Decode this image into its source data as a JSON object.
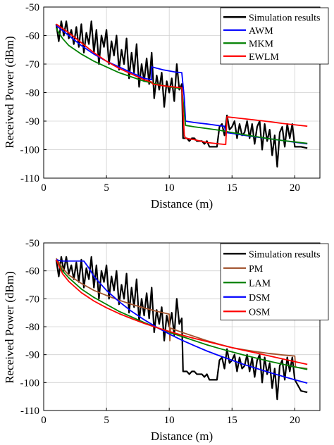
{
  "chart_data": [
    {
      "type": "line",
      "xlabel": "Distance (m)",
      "ylabel": "Received Power (dBm)",
      "xlim": [
        0,
        22
      ],
      "ylim": [
        -110,
        -50
      ],
      "xticks": [
        "0",
        "5",
        "10",
        "15",
        "20"
      ],
      "yticks": [
        "-50",
        "-60",
        "-70",
        "-80",
        "-90",
        "-100",
        "-110"
      ],
      "grid": true,
      "legend_position": "top-right",
      "series": [
        {
          "name": "Simulation results",
          "color": "#000000",
          "width": 2.2,
          "x": [
            1.0,
            1.2,
            1.4,
            1.6,
            1.8,
            2.0,
            2.2,
            2.4,
            2.6,
            2.8,
            3.0,
            3.2,
            3.4,
            3.6,
            3.8,
            4.0,
            4.2,
            4.4,
            4.6,
            4.8,
            5.0,
            5.2,
            5.4,
            5.6,
            5.8,
            6.0,
            6.2,
            6.4,
            6.6,
            6.8,
            7.0,
            7.2,
            7.4,
            7.6,
            7.8,
            8.0,
            8.2,
            8.4,
            8.6,
            8.8,
            9.0,
            9.2,
            9.4,
            9.6,
            9.8,
            10.0,
            10.2,
            10.4,
            10.6,
            10.8,
            11.0,
            11.1,
            11.2,
            11.4,
            11.6,
            11.8,
            12.0,
            12.2,
            12.4,
            12.6,
            12.8,
            13.0,
            13.2,
            13.4,
            13.6,
            13.8,
            14.0,
            14.2,
            14.4,
            14.6,
            14.8,
            15.0,
            15.2,
            15.4,
            15.6,
            15.8,
            16.0,
            16.2,
            16.4,
            16.6,
            16.8,
            17.0,
            17.2,
            17.4,
            17.6,
            17.8,
            18.0,
            18.2,
            18.4,
            18.6,
            18.8,
            19.0,
            19.2,
            19.4,
            19.6,
            19.8,
            20.0,
            20.5,
            21.0
          ],
          "y": [
            -56,
            -62,
            -55,
            -60,
            -55,
            -61,
            -58,
            -63,
            -57,
            -64,
            -56,
            -66,
            -59,
            -63,
            -55,
            -66,
            -58,
            -70,
            -60,
            -64,
            -58,
            -70,
            -62,
            -67,
            -60,
            -72,
            -65,
            -70,
            -61,
            -75,
            -66,
            -73,
            -63,
            -78,
            -70,
            -76,
            -68,
            -77,
            -66,
            -82,
            -74,
            -79,
            -73,
            -85,
            -76,
            -80,
            -75,
            -83,
            -70,
            -79,
            -77,
            -96,
            -96,
            -96,
            -97,
            -96,
            -96,
            -97,
            -97,
            -97,
            -98,
            -97,
            -99,
            -99,
            -99,
            -99,
            -92,
            -91,
            -95,
            -88,
            -93,
            -92,
            -90,
            -96,
            -91,
            -95,
            -94,
            -90,
            -96,
            -91,
            -98,
            -92,
            -90,
            -100,
            -91,
            -97,
            -93,
            -102,
            -95,
            -106,
            -94,
            -92,
            -99,
            -91,
            -96,
            -91,
            -99,
            -99,
            -99.5
          ]
        },
        {
          "name": "AWM",
          "color": "#0000ff",
          "width": 1.8,
          "x": [
            1.0,
            2,
            3,
            4,
            5,
            6,
            7,
            8,
            8.6,
            8.6,
            9.5,
            10.5,
            11.0,
            11.2,
            11.3,
            12,
            13,
            14,
            14.4,
            14.5,
            15,
            16,
            17,
            18,
            19,
            20,
            21
          ],
          "y": [
            -56.5,
            -60,
            -63.5,
            -66.5,
            -69,
            -71,
            -73,
            -75,
            -75.5,
            -71,
            -72,
            -72.8,
            -73,
            -82,
            -90,
            -90.5,
            -91,
            -91.6,
            -91.8,
            -94,
            -94.3,
            -95,
            -95.6,
            -96.2,
            -96.8,
            -97.4,
            -98
          ]
        },
        {
          "name": "MKM",
          "color": "#008000",
          "width": 1.8,
          "x": [
            1.0,
            1.5,
            2,
            3,
            4,
            5,
            6,
            7,
            8,
            9,
            10,
            11,
            11.3,
            12,
            13,
            14,
            15,
            16,
            17,
            18,
            19,
            20,
            21
          ],
          "y": [
            -57.5,
            -61,
            -63.5,
            -66.5,
            -69,
            -71,
            -73,
            -74.5,
            -76,
            -77,
            -78,
            -78.6,
            -91.5,
            -92,
            -92.6,
            -93.2,
            -94,
            -94.8,
            -95.5,
            -96.2,
            -96.8,
            -97.3,
            -97.8
          ]
        },
        {
          "name": "EWLM",
          "color": "#ff0000",
          "width": 1.8,
          "x": [
            1.0,
            2,
            3,
            4,
            5,
            6,
            7,
            8,
            8.6,
            8.7,
            9.5,
            10.5,
            11.0,
            11.2,
            11.3,
            12,
            13,
            14,
            14.5,
            14.6,
            15,
            16,
            17,
            18,
            19,
            20,
            21
          ],
          "y": [
            -56,
            -59,
            -62.5,
            -66,
            -69,
            -71.5,
            -73.5,
            -75.5,
            -76.3,
            -77,
            -77.6,
            -78.1,
            -78.3,
            -95,
            -96,
            -96.5,
            -97.5,
            -98,
            -98.2,
            -88.5,
            -88.7,
            -89.2,
            -89.7,
            -90.2,
            -90.8,
            -91.3,
            -91.8
          ]
        }
      ]
    },
    {
      "type": "line",
      "xlabel": "Distance (m)",
      "ylabel": "Received Power (dBm)",
      "xlim": [
        0,
        22
      ],
      "ylim": [
        -110,
        -50
      ],
      "xticks": [
        "0",
        "5",
        "10",
        "15",
        "20"
      ],
      "yticks": [
        "-50",
        "-60",
        "-70",
        "-80",
        "-90",
        "-100",
        "-110"
      ],
      "grid": true,
      "legend_position": "top-right",
      "series": [
        {
          "name": "Simulation results",
          "color": "#000000",
          "width": 2.2,
          "x": [
            1.0,
            1.2,
            1.4,
            1.6,
            1.8,
            2.0,
            2.2,
            2.4,
            2.6,
            2.8,
            3.0,
            3.2,
            3.4,
            3.6,
            3.8,
            4.0,
            4.2,
            4.4,
            4.6,
            4.8,
            5.0,
            5.2,
            5.4,
            5.6,
            5.8,
            6.0,
            6.2,
            6.4,
            6.6,
            6.8,
            7.0,
            7.2,
            7.4,
            7.6,
            7.8,
            8.0,
            8.2,
            8.4,
            8.6,
            8.8,
            9.0,
            9.2,
            9.4,
            9.6,
            9.8,
            10.0,
            10.2,
            10.4,
            10.6,
            10.8,
            11.0,
            11.1,
            11.2,
            11.4,
            11.6,
            11.8,
            12.0,
            12.2,
            12.4,
            12.6,
            12.8,
            13.0,
            13.2,
            13.4,
            13.6,
            13.8,
            14.0,
            14.2,
            14.4,
            14.6,
            14.8,
            15.0,
            15.2,
            15.4,
            15.6,
            15.8,
            16.0,
            16.2,
            16.4,
            16.6,
            16.8,
            17.0,
            17.2,
            17.4,
            17.6,
            17.8,
            18.0,
            18.2,
            18.4,
            18.6,
            18.8,
            19.0,
            19.2,
            19.4,
            19.6,
            19.8,
            20.0,
            20.5,
            21.0
          ],
          "y": [
            -56,
            -62,
            -55,
            -60,
            -55,
            -61,
            -58,
            -63,
            -57,
            -64,
            -56,
            -66,
            -59,
            -63,
            -55,
            -66,
            -58,
            -70,
            -60,
            -64,
            -58,
            -70,
            -62,
            -67,
            -60,
            -72,
            -65,
            -70,
            -61,
            -75,
            -66,
            -73,
            -63,
            -78,
            -70,
            -76,
            -68,
            -77,
            -66,
            -82,
            -74,
            -79,
            -73,
            -85,
            -76,
            -80,
            -75,
            -83,
            -70,
            -79,
            -77,
            -96,
            -96,
            -96,
            -97,
            -96,
            -96,
            -97,
            -97,
            -97,
            -98,
            -97,
            -99,
            -99,
            -99,
            -99,
            -92,
            -91,
            -95,
            -88,
            -93,
            -92,
            -90,
            -96,
            -91,
            -95,
            -94,
            -90,
            -96,
            -91,
            -98,
            -92,
            -90,
            -100,
            -91,
            -97,
            -93,
            -102,
            -95,
            -106,
            -94,
            -92,
            -99,
            -91,
            -96,
            -91,
            -99,
            -103,
            -103.5
          ]
        },
        {
          "name": "PM",
          "color": "#a0522d",
          "width": 1.8,
          "x": [
            1.0,
            1.5,
            2,
            3,
            4,
            5,
            6,
            7,
            8,
            9,
            10.0,
            10.05,
            10.1,
            11,
            12,
            13,
            14,
            15,
            16,
            17,
            18,
            19,
            20.0,
            20.05,
            20.1,
            21
          ],
          "y": [
            -55.5,
            -59,
            -61.5,
            -64.5,
            -67,
            -68.8,
            -70.5,
            -72,
            -73.3,
            -74.5,
            -75.5,
            -85,
            -80.5,
            -82,
            -83.5,
            -85,
            -86.3,
            -87.5,
            -88.3,
            -89,
            -89.6,
            -90.1,
            -90.5,
            -94,
            -94.5,
            -95
          ]
        },
        {
          "name": "LAM",
          "color": "#008000",
          "width": 1.8,
          "x": [
            1.0,
            1.5,
            2,
            3,
            4,
            5,
            6,
            7,
            8,
            9,
            10,
            11,
            12,
            13,
            14,
            15,
            16,
            17,
            18,
            19,
            20,
            21
          ],
          "y": [
            -56,
            -60,
            -62.5,
            -66.5,
            -69.5,
            -72,
            -74.5,
            -76.5,
            -78.5,
            -80.3,
            -82,
            -83.5,
            -85,
            -86.5,
            -87.8,
            -89,
            -90.2,
            -91.3,
            -92.4,
            -93.4,
            -94.4,
            -95.3
          ]
        },
        {
          "name": "DSM",
          "color": "#0000ff",
          "width": 1.8,
          "x": [
            1.0,
            1.4,
            3.2,
            3.6,
            4,
            5,
            6,
            7,
            8,
            9,
            10,
            11,
            12,
            13,
            14,
            15,
            16,
            17,
            18,
            19,
            20,
            21
          ],
          "y": [
            -56,
            -56.5,
            -56.5,
            -59,
            -62,
            -67,
            -71,
            -74.5,
            -77.5,
            -80.2,
            -82.6,
            -84.8,
            -86.8,
            -88.7,
            -90.4,
            -92,
            -93.6,
            -95,
            -96.4,
            -97.7,
            -99,
            -100.2
          ]
        },
        {
          "name": "OSM",
          "color": "#ff0000",
          "width": 1.8,
          "x": [
            1.0,
            1.5,
            2,
            3,
            4,
            5,
            6,
            7,
            8,
            9,
            10,
            11,
            12,
            13,
            14,
            15,
            16,
            17,
            18,
            19,
            20,
            21
          ],
          "y": [
            -56,
            -61,
            -63.8,
            -67.8,
            -70.8,
            -73.2,
            -75.3,
            -77.1,
            -78.8,
            -80.3,
            -81.7,
            -83,
            -84.2,
            -85.3,
            -86.4,
            -87.5,
            -88.5,
            -89.5,
            -90.5,
            -91.5,
            -92.5,
            -93.5
          ]
        }
      ]
    }
  ]
}
